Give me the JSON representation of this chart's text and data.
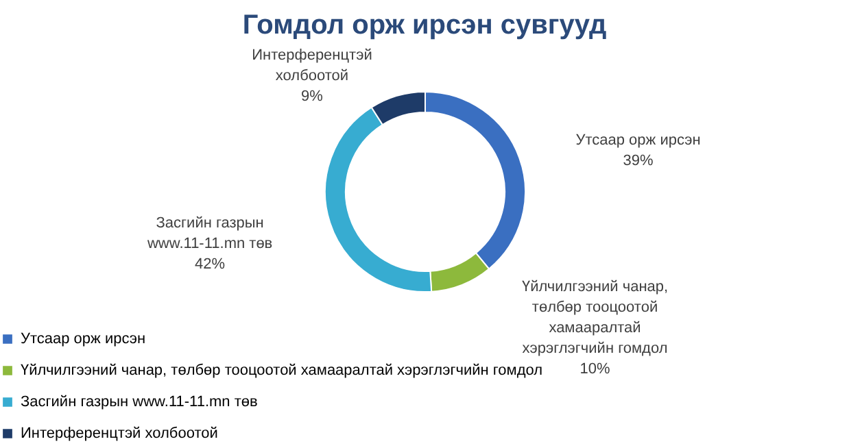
{
  "chart_data": {
    "type": "donut",
    "title": "Гомдол орж ирсэн сувгууд",
    "categories": [
      "Утсаар орж ирсэн",
      "Үйлчилгээний чанар, төлбөр тооцоотой хамааралтай хэрэглэгчийн гомдол",
      "Засгийн газрын www.11-11.mn төв",
      "Интерференцтэй холбоотой"
    ],
    "values": [
      39,
      10,
      42,
      9
    ],
    "colors": [
      "#3a6fc1",
      "#8db93c",
      "#37acd1",
      "#1e3b68"
    ],
    "value_labels": [
      "39%",
      "10%",
      "42%",
      "9%"
    ],
    "legend": "bottom left"
  }
}
